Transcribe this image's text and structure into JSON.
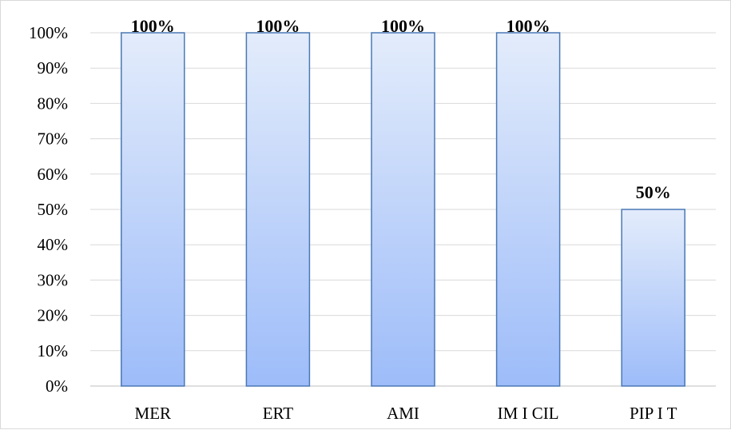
{
  "chart_data": {
    "type": "bar",
    "categories": [
      "MER",
      "ERT",
      "AMI",
      "IM I CIL",
      "PIP I T"
    ],
    "values": [
      100,
      100,
      100,
      100,
      50
    ],
    "data_labels": [
      "100%",
      "100%",
      "100%",
      "100%",
      "50%"
    ],
    "ylim": [
      0,
      100
    ],
    "yticks": [
      0,
      10,
      20,
      30,
      40,
      50,
      60,
      70,
      80,
      90,
      100
    ],
    "ytick_labels": [
      "0%",
      "10%",
      "20%",
      "30%",
      "40%",
      "50%",
      "60%",
      "70%",
      "80%",
      "90%",
      "100%"
    ],
    "grid": true,
    "legend": "none",
    "title": "",
    "xlabel": "",
    "ylabel": "",
    "colors": {
      "bar_top": "#e3ecfb",
      "bar_bottom": "#9dbcf9",
      "bar_edge": "#4a78b5",
      "grid": "#d9d9d9",
      "axis": "#bfbfbf"
    }
  }
}
